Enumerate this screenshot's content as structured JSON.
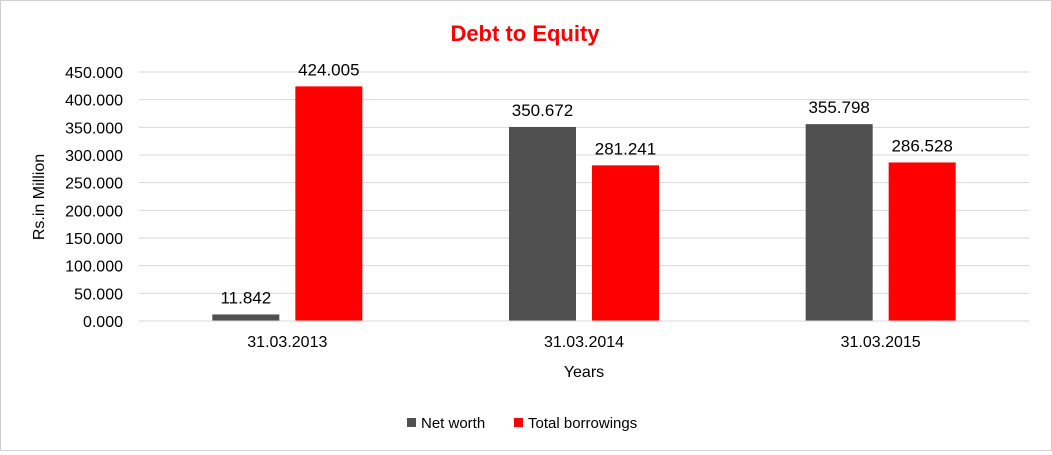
{
  "chart_data": {
    "type": "bar",
    "title": "Debt to Equity",
    "xlabel": "Years",
    "ylabel": "Rs.in Million",
    "categories": [
      "31.03.2013",
      "31.03.2014",
      "31.03.2015"
    ],
    "series": [
      {
        "name": "Net worth",
        "values": [
          11.842,
          350.672,
          355.798
        ],
        "color": "#505050"
      },
      {
        "name": "Total borrowings",
        "values": [
          424.005,
          281.241,
          286.528
        ],
        "color": "#ff0000"
      }
    ],
    "data_labels": [
      [
        "11.842",
        "350.672",
        "355.798"
      ],
      [
        "424.005",
        "281.241",
        "286.528"
      ]
    ],
    "ylim": [
      0,
      450
    ],
    "yticks": [
      0,
      50,
      100,
      150,
      200,
      250,
      300,
      350,
      400,
      450
    ],
    "ytick_labels": [
      "0.000",
      "50.000",
      "100.000",
      "150.000",
      "200.000",
      "250.000",
      "300.000",
      "350.000",
      "400.000",
      "450.000"
    ],
    "grid": true,
    "legend_position": "bottom",
    "title_color": "#ff0000"
  }
}
